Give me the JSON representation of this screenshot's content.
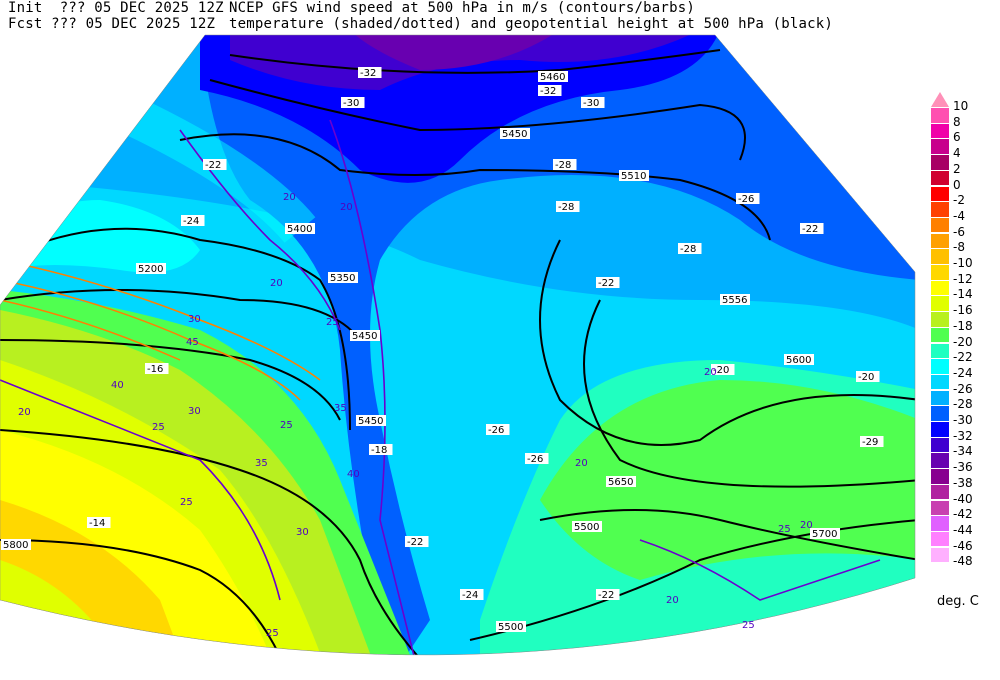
{
  "header": {
    "init_label": "Init  ??? 05 DEC 2025 12Z",
    "fcst_label": "Fcst ??? 05 DEC 2025 12Z",
    "title_line1": "NCEP GFS wind speed at 500 hPa in m/s (contours/barbs)",
    "title_line2": "temperature (shaded/dotted) and geopotential height at 500 hPa (black)"
  },
  "colorbar": {
    "units": "deg. C",
    "arrow_color": "#ff90b8",
    "labels": [
      "10",
      "8",
      "6",
      "4",
      "2",
      "0",
      "-2",
      "-4",
      "-6",
      "-8",
      "-10",
      "-12",
      "-14",
      "-16",
      "-18",
      "-20",
      "-22",
      "-24",
      "-26",
      "-28",
      "-30",
      "-32",
      "-34",
      "-36",
      "-38",
      "-40",
      "-42",
      "-44",
      "-46",
      "-48"
    ],
    "colors": [
      "#ff50b0",
      "#f000a8",
      "#c8008c",
      "#a80064",
      "#d00030",
      "#ff0000",
      "#ff4000",
      "#ff8000",
      "#ffa000",
      "#ffc000",
      "#ffd800",
      "#ffff00",
      "#e0ff00",
      "#b8f020",
      "#50ff50",
      "#20ffc0",
      "#00ffff",
      "#00d8ff",
      "#00b0ff",
      "#0060ff",
      "#0000ff",
      "#4000d0",
      "#6800b0",
      "#880090",
      "#b020a0",
      "#c840b0",
      "#e060ff",
      "#ff80ff",
      "#ffb0ff"
    ]
  },
  "map": {
    "height_labels": [
      "5460",
      "5450",
      "5510",
      "5400",
      "5350",
      "5200",
      "5450",
      "5450",
      "5556",
      "5600",
      "5650",
      "5500",
      "5700",
      "5800",
      "5500"
    ],
    "temp_labels": [
      "-32",
      "-30",
      "-32",
      "-30",
      "-22",
      "-24",
      "-26",
      "-28",
      "-28",
      "-22",
      "-22",
      "-26",
      "-20",
      "-20",
      "-29",
      "-16",
      "-14",
      "-24",
      "-22",
      "-18",
      "-22",
      "-26",
      "-28"
    ],
    "wind_labels": [
      "20",
      "20",
      "20",
      "25",
      "30",
      "35",
      "40",
      "45",
      "30",
      "40",
      "35",
      "25",
      "20",
      "25",
      "30",
      "25",
      "20",
      "20",
      "25",
      "20",
      "20",
      "25",
      "25"
    ]
  }
}
